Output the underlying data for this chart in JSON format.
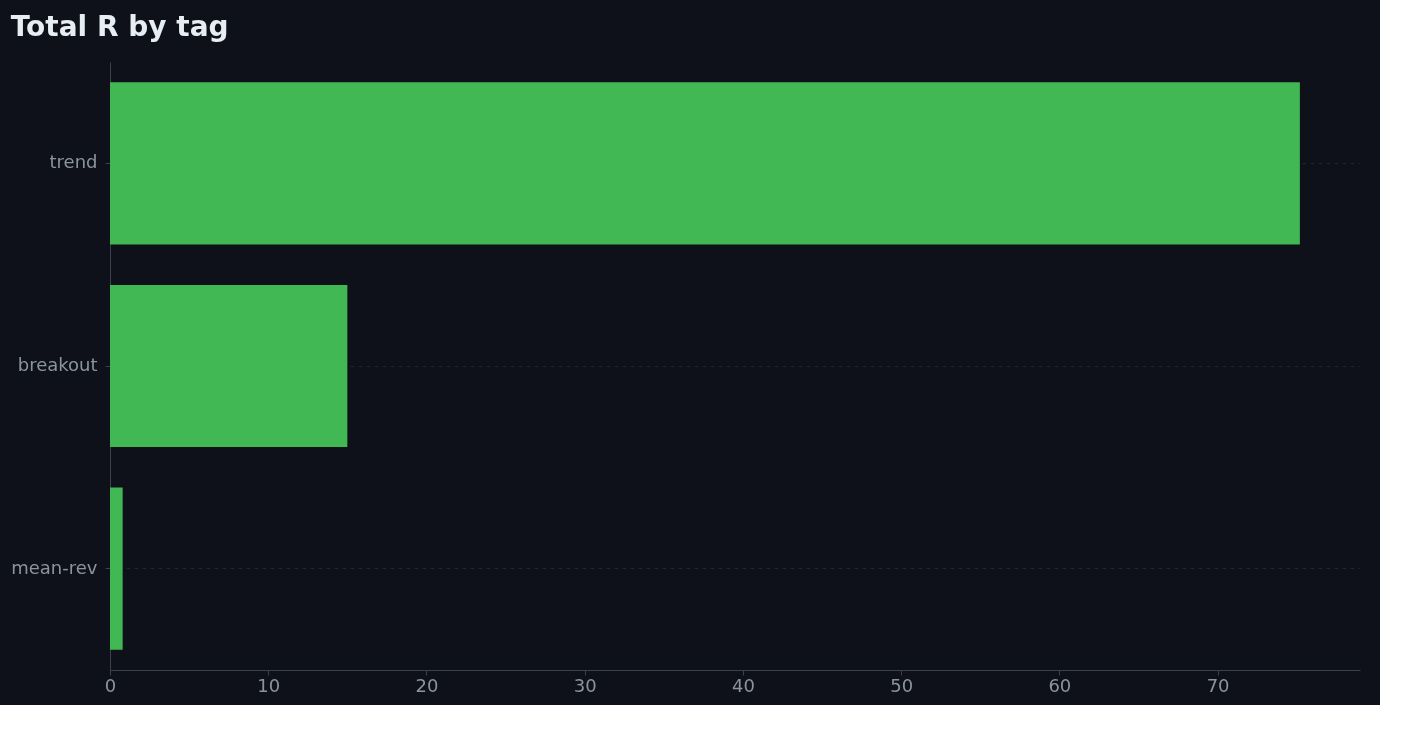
{
  "chart_data": {
    "type": "bar",
    "orientation": "horizontal",
    "title": "Total R by tag",
    "categories": [
      "trend",
      "breakout",
      "mean-rev"
    ],
    "values": [
      75.2,
      15.0,
      0.8
    ],
    "color": "#41b853",
    "xlim": [
      0,
      79
    ],
    "xticks": [
      0,
      10,
      20,
      30,
      40,
      50,
      60,
      70
    ],
    "grid": "y"
  }
}
